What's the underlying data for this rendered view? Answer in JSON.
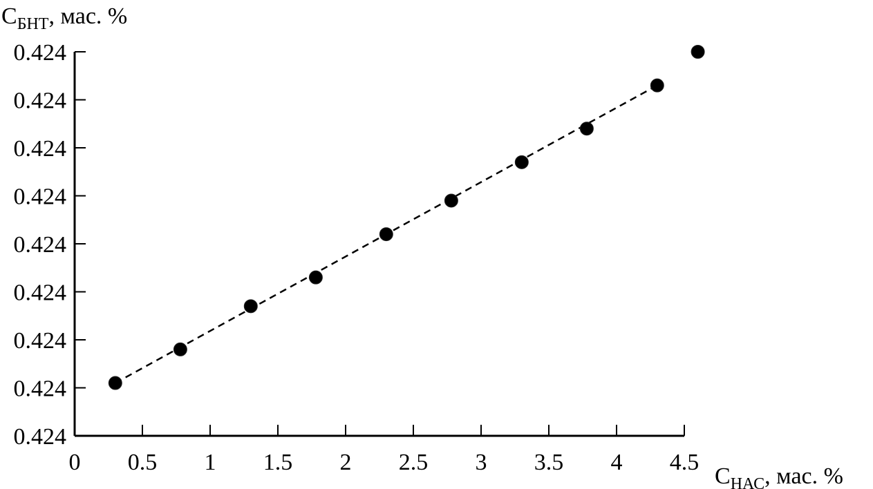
{
  "chart_data": {
    "type": "scatter",
    "title": "",
    "ylabel": {
      "main": "C",
      "sub": "БНТ",
      "rest": ", мас. %"
    },
    "xlabel": {
      "main": "C",
      "sub": "НАС",
      "rest": ", мас. %"
    },
    "xlim": [
      0,
      4.5
    ],
    "ylim": [
      0.424,
      0.4248
    ],
    "x_ticks": [
      0,
      0.5,
      1,
      1.5,
      2,
      2.5,
      3,
      3.5,
      4,
      4.5
    ],
    "x_tick_labels": [
      "0",
      "0.5",
      "1",
      "1.5",
      "2",
      "2.5",
      "3",
      "3.5",
      "4",
      "4.5"
    ],
    "y_ticks": [
      0.424,
      0.4241,
      0.4242,
      0.4243,
      0.4244,
      0.4245,
      0.4246,
      0.4247,
      0.4248
    ],
    "y_tick_labels": [
      "0.424",
      "0.424",
      "0.424",
      "0.424",
      "0.424",
      "0.424",
      "0.424",
      "0.424",
      "0.424"
    ],
    "grid": false,
    "marker_color": "#000000",
    "points": {
      "x": [
        0.3,
        0.78,
        1.3,
        1.78,
        2.3,
        2.78,
        3.3,
        3.78,
        4.3,
        4.6
      ],
      "y": [
        0.42411,
        0.42418,
        0.42427,
        0.42433,
        0.42442,
        0.42449,
        0.42457,
        0.42464,
        0.42473,
        0.4248
      ]
    },
    "trendline": {
      "style": "dashed",
      "x": [
        0.3,
        4.3
      ],
      "y": [
        0.42411,
        0.42473
      ]
    }
  }
}
